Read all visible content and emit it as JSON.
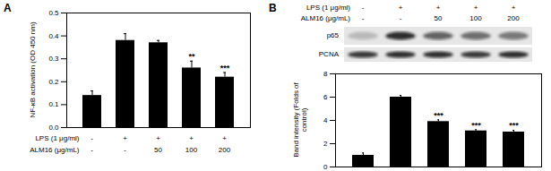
{
  "chart_data": [
    {
      "type": "bar",
      "title": "A",
      "y_label": "NF-κB activation (OD 450 nm)",
      "categories": [
        null,
        null,
        null,
        null,
        null
      ],
      "values": [
        0.14,
        0.38,
        0.37,
        0.26,
        0.22
      ],
      "errors": [
        0.02,
        0.03,
        0.01,
        0.03,
        0.02
      ],
      "significance": [
        null,
        null,
        null,
        "**",
        "***"
      ],
      "color": "#000000",
      "ylim": [
        0,
        0.5
      ],
      "yticks": [
        {
          "value": 0,
          "label": "0.0"
        },
        0.1,
        0.2,
        0.3,
        0.4,
        0.5
      ],
      "tick_labels": "y",
      "treatments": [
        {
          "name": "LPS (1 μg/ml)",
          "levels": [
            "-",
            "+",
            "+",
            "+",
            "+"
          ]
        },
        {
          "name": "ALM16 (μg/mL)",
          "levels": [
            "-",
            "-",
            "50",
            "100",
            "200"
          ]
        }
      ]
    },
    {
      "type": "bar",
      "title": "B",
      "y_label": "Band intensity (Folds of control)",
      "categories": [
        null,
        null,
        null,
        null,
        null
      ],
      "values": [
        1.0,
        6.0,
        3.9,
        3.1,
        3.0
      ],
      "errors": [
        0.2,
        0.15,
        0.15,
        0.1,
        0.15
      ],
      "significance": [
        null,
        null,
        "***",
        "***",
        "***"
      ],
      "color": "#000000",
      "ylim": [
        0,
        8
      ],
      "yticks": [
        0,
        2,
        4,
        6,
        8
      ],
      "tick_labels": "y",
      "blot_labels": [
        "p65",
        "PCNA"
      ],
      "treatments": [
        {
          "name": "LPS (1 μg/ml)",
          "levels": [
            "-",
            "+",
            "+",
            "+",
            "+"
          ]
        },
        {
          "name": "ALM16 (μg/mL)",
          "levels": [
            "-",
            "-",
            "50",
            "100",
            "200"
          ]
        }
      ]
    }
  ]
}
